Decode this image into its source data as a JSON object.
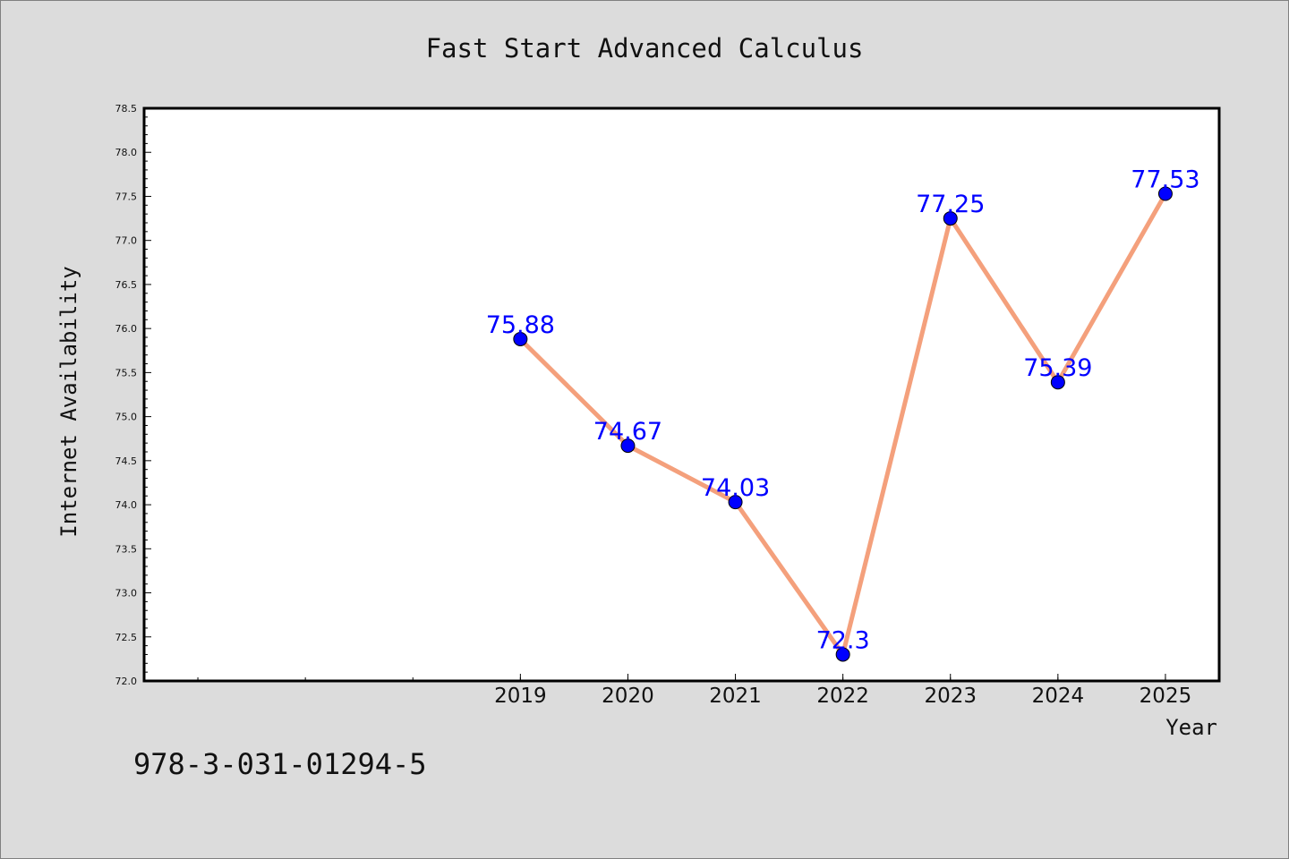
{
  "chart_data": {
    "type": "line",
    "title": "Fast Start Advanced Calculus",
    "xlabel": "Year",
    "ylabel": "Internet Availability",
    "x": [
      2019,
      2020,
      2021,
      2022,
      2023,
      2024,
      2025
    ],
    "series": [
      {
        "values": [
          75.88,
          74.67,
          74.03,
          72.3,
          77.25,
          75.39,
          77.53
        ],
        "labels": [
          "75.88",
          "74.67",
          "74.03",
          "72.3",
          "77.25",
          "75.39",
          "77.53"
        ]
      }
    ],
    "x_tick_labels": [
      "2019",
      "2020",
      "2021",
      "2022",
      "2023",
      "2024",
      "2025"
    ],
    "xlim": [
      2015.5,
      2025.5
    ],
    "ylim": [
      72.0,
      78.5
    ],
    "y_ticks": [
      "72.0",
      "72.5",
      "73.0",
      "73.5",
      "74.0",
      "74.5",
      "75.0",
      "75.5",
      "76.0",
      "76.5",
      "77.0",
      "77.5",
      "78.0",
      "78.5"
    ],
    "grid": false,
    "line_color": "#f4a07c",
    "marker_color": "#0000ff",
    "label_color": "#0000ff"
  },
  "footer": {
    "isbn": "978-3-031-01294-5"
  }
}
